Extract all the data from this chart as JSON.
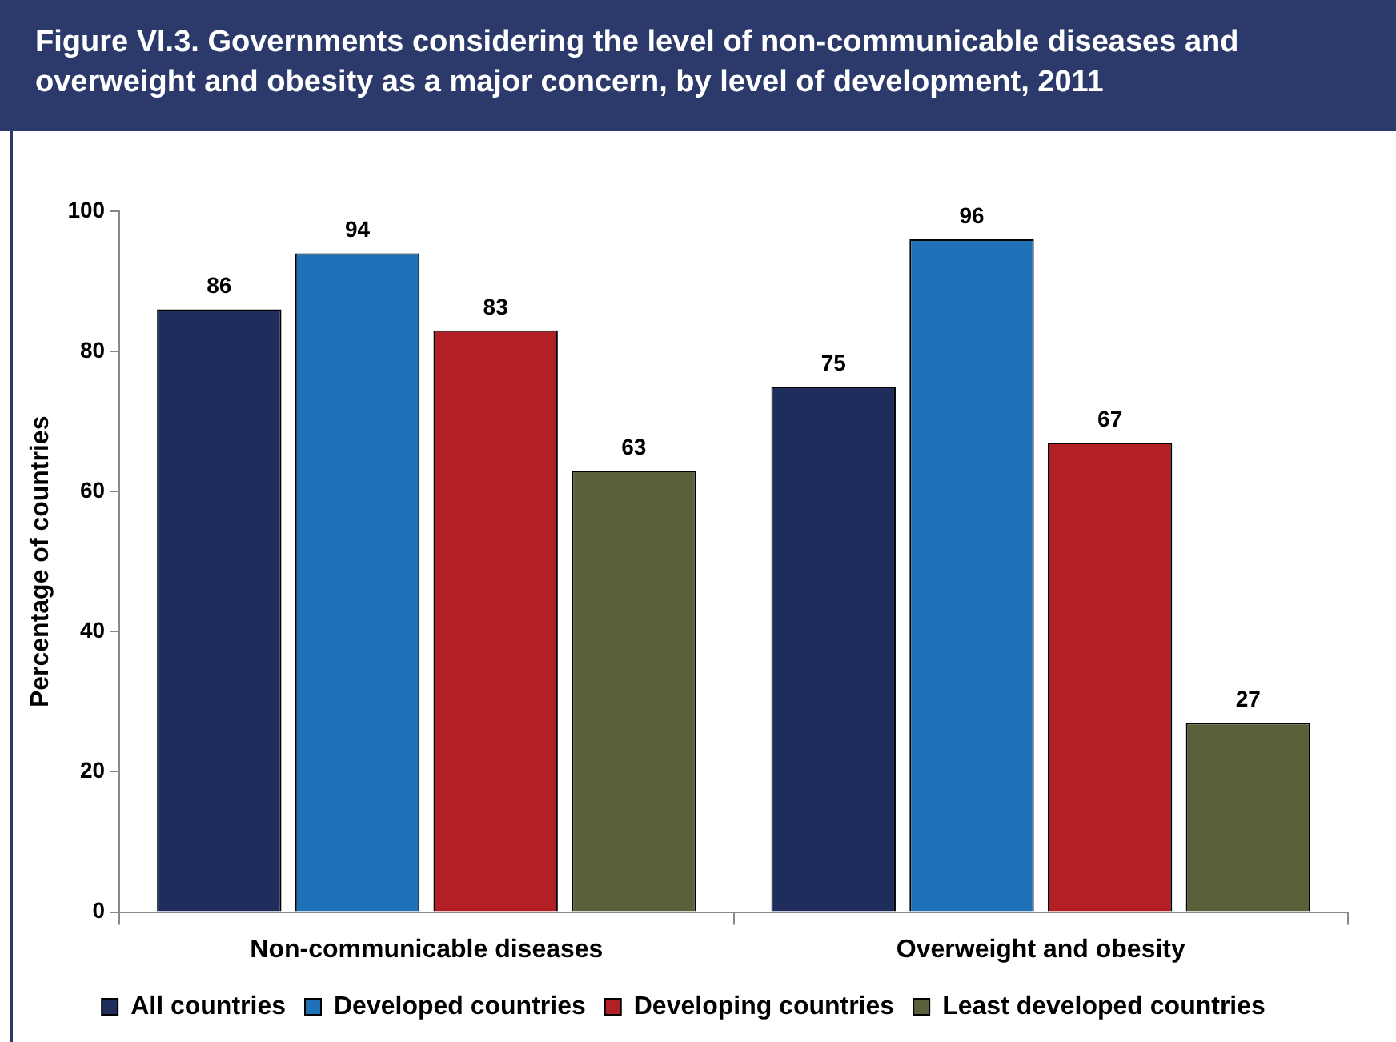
{
  "chart_data": {
    "type": "bar",
    "title": "Figure VI.3. Governments considering the level of non-communicable diseases and overweight and obesity as a major concern, by level of development, 2011",
    "ylabel": "Percentage of countries",
    "categories": [
      "Non-communicable diseases",
      "Overweight and obesity"
    ],
    "series": [
      {
        "name": "All countries",
        "color": "#1f2d5c",
        "values": [
          86,
          75
        ]
      },
      {
        "name": "Developed countries",
        "color": "#1f72b8",
        "values": [
          94,
          96
        ]
      },
      {
        "name": "Developing countries",
        "color": "#b21f24",
        "values": [
          83,
          67
        ]
      },
      {
        "name": "Least developed countries",
        "color": "#5a6039",
        "values": [
          63,
          27
        ]
      }
    ],
    "ylim": [
      0,
      100
    ],
    "yticks": [
      0,
      20,
      40,
      60,
      80,
      100
    ],
    "grid": false,
    "legend": "bottom",
    "data_labels": true
  }
}
